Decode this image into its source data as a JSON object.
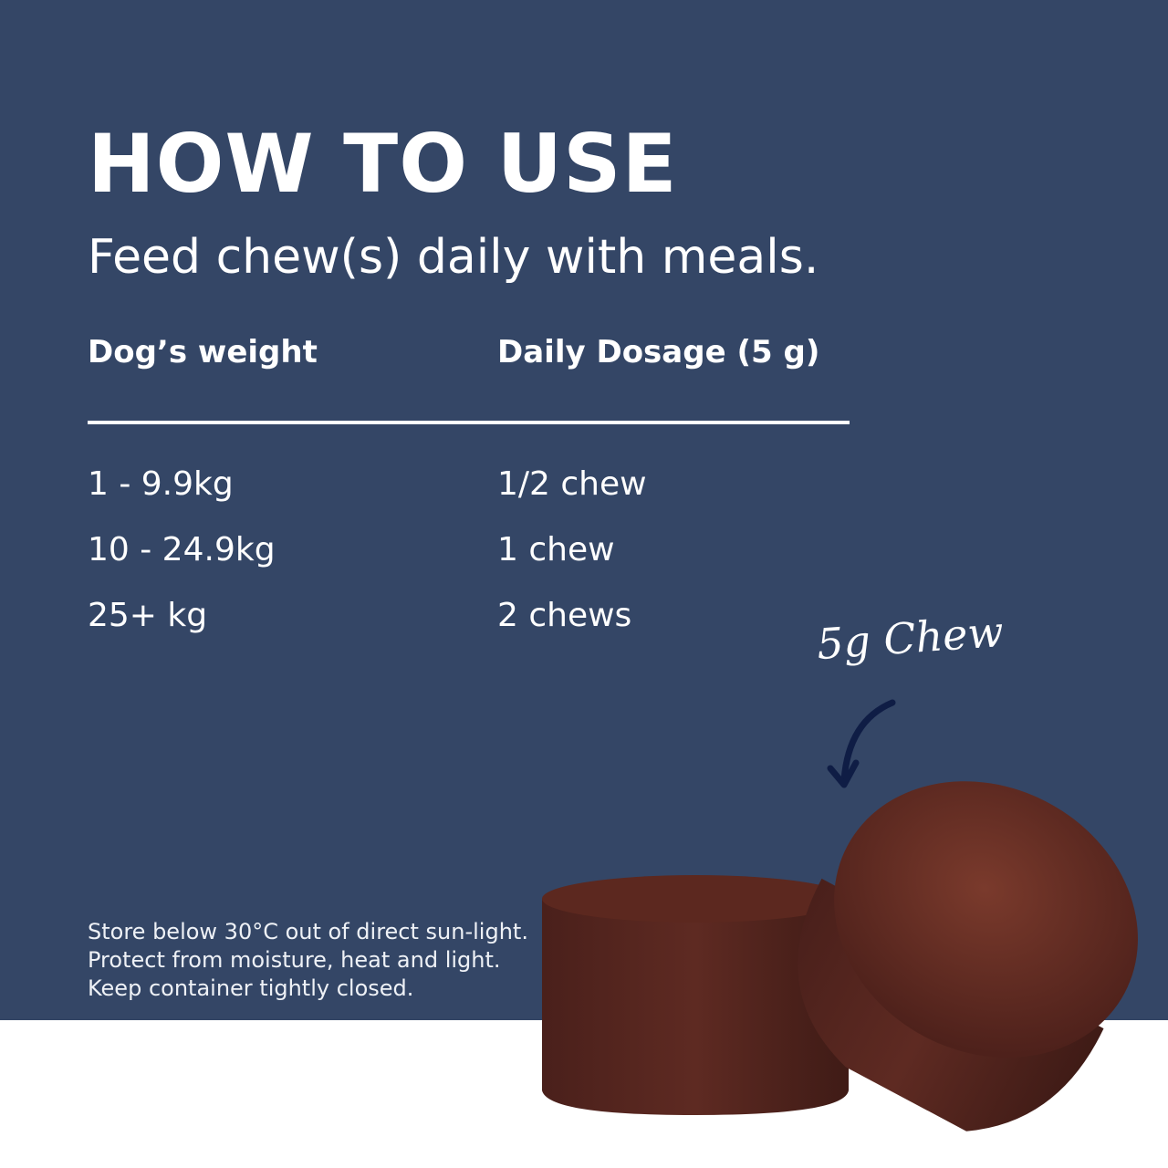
{
  "title": "HOW TO USE",
  "subtitle": "Feed chew(s) daily with meals.",
  "table": {
    "headers": [
      "Dog’s weight",
      "Daily Dosage (5 g)"
    ],
    "rows": [
      [
        "1 - 9.9kg",
        "1/2 chew"
      ],
      [
        "10 - 24.9kg",
        "1 chew"
      ],
      [
        "25+ kg",
        "2 chews"
      ]
    ]
  },
  "storage_note": "Store below 30°C out of direct sun-light. Protect from moisture, heat and light. Keep container tightly closed.",
  "chew_label": "5g Chew",
  "colors": {
    "background": "#344666",
    "arrow": "#0f1d45",
    "chew": "#5a2620",
    "base": "#ffffff"
  }
}
